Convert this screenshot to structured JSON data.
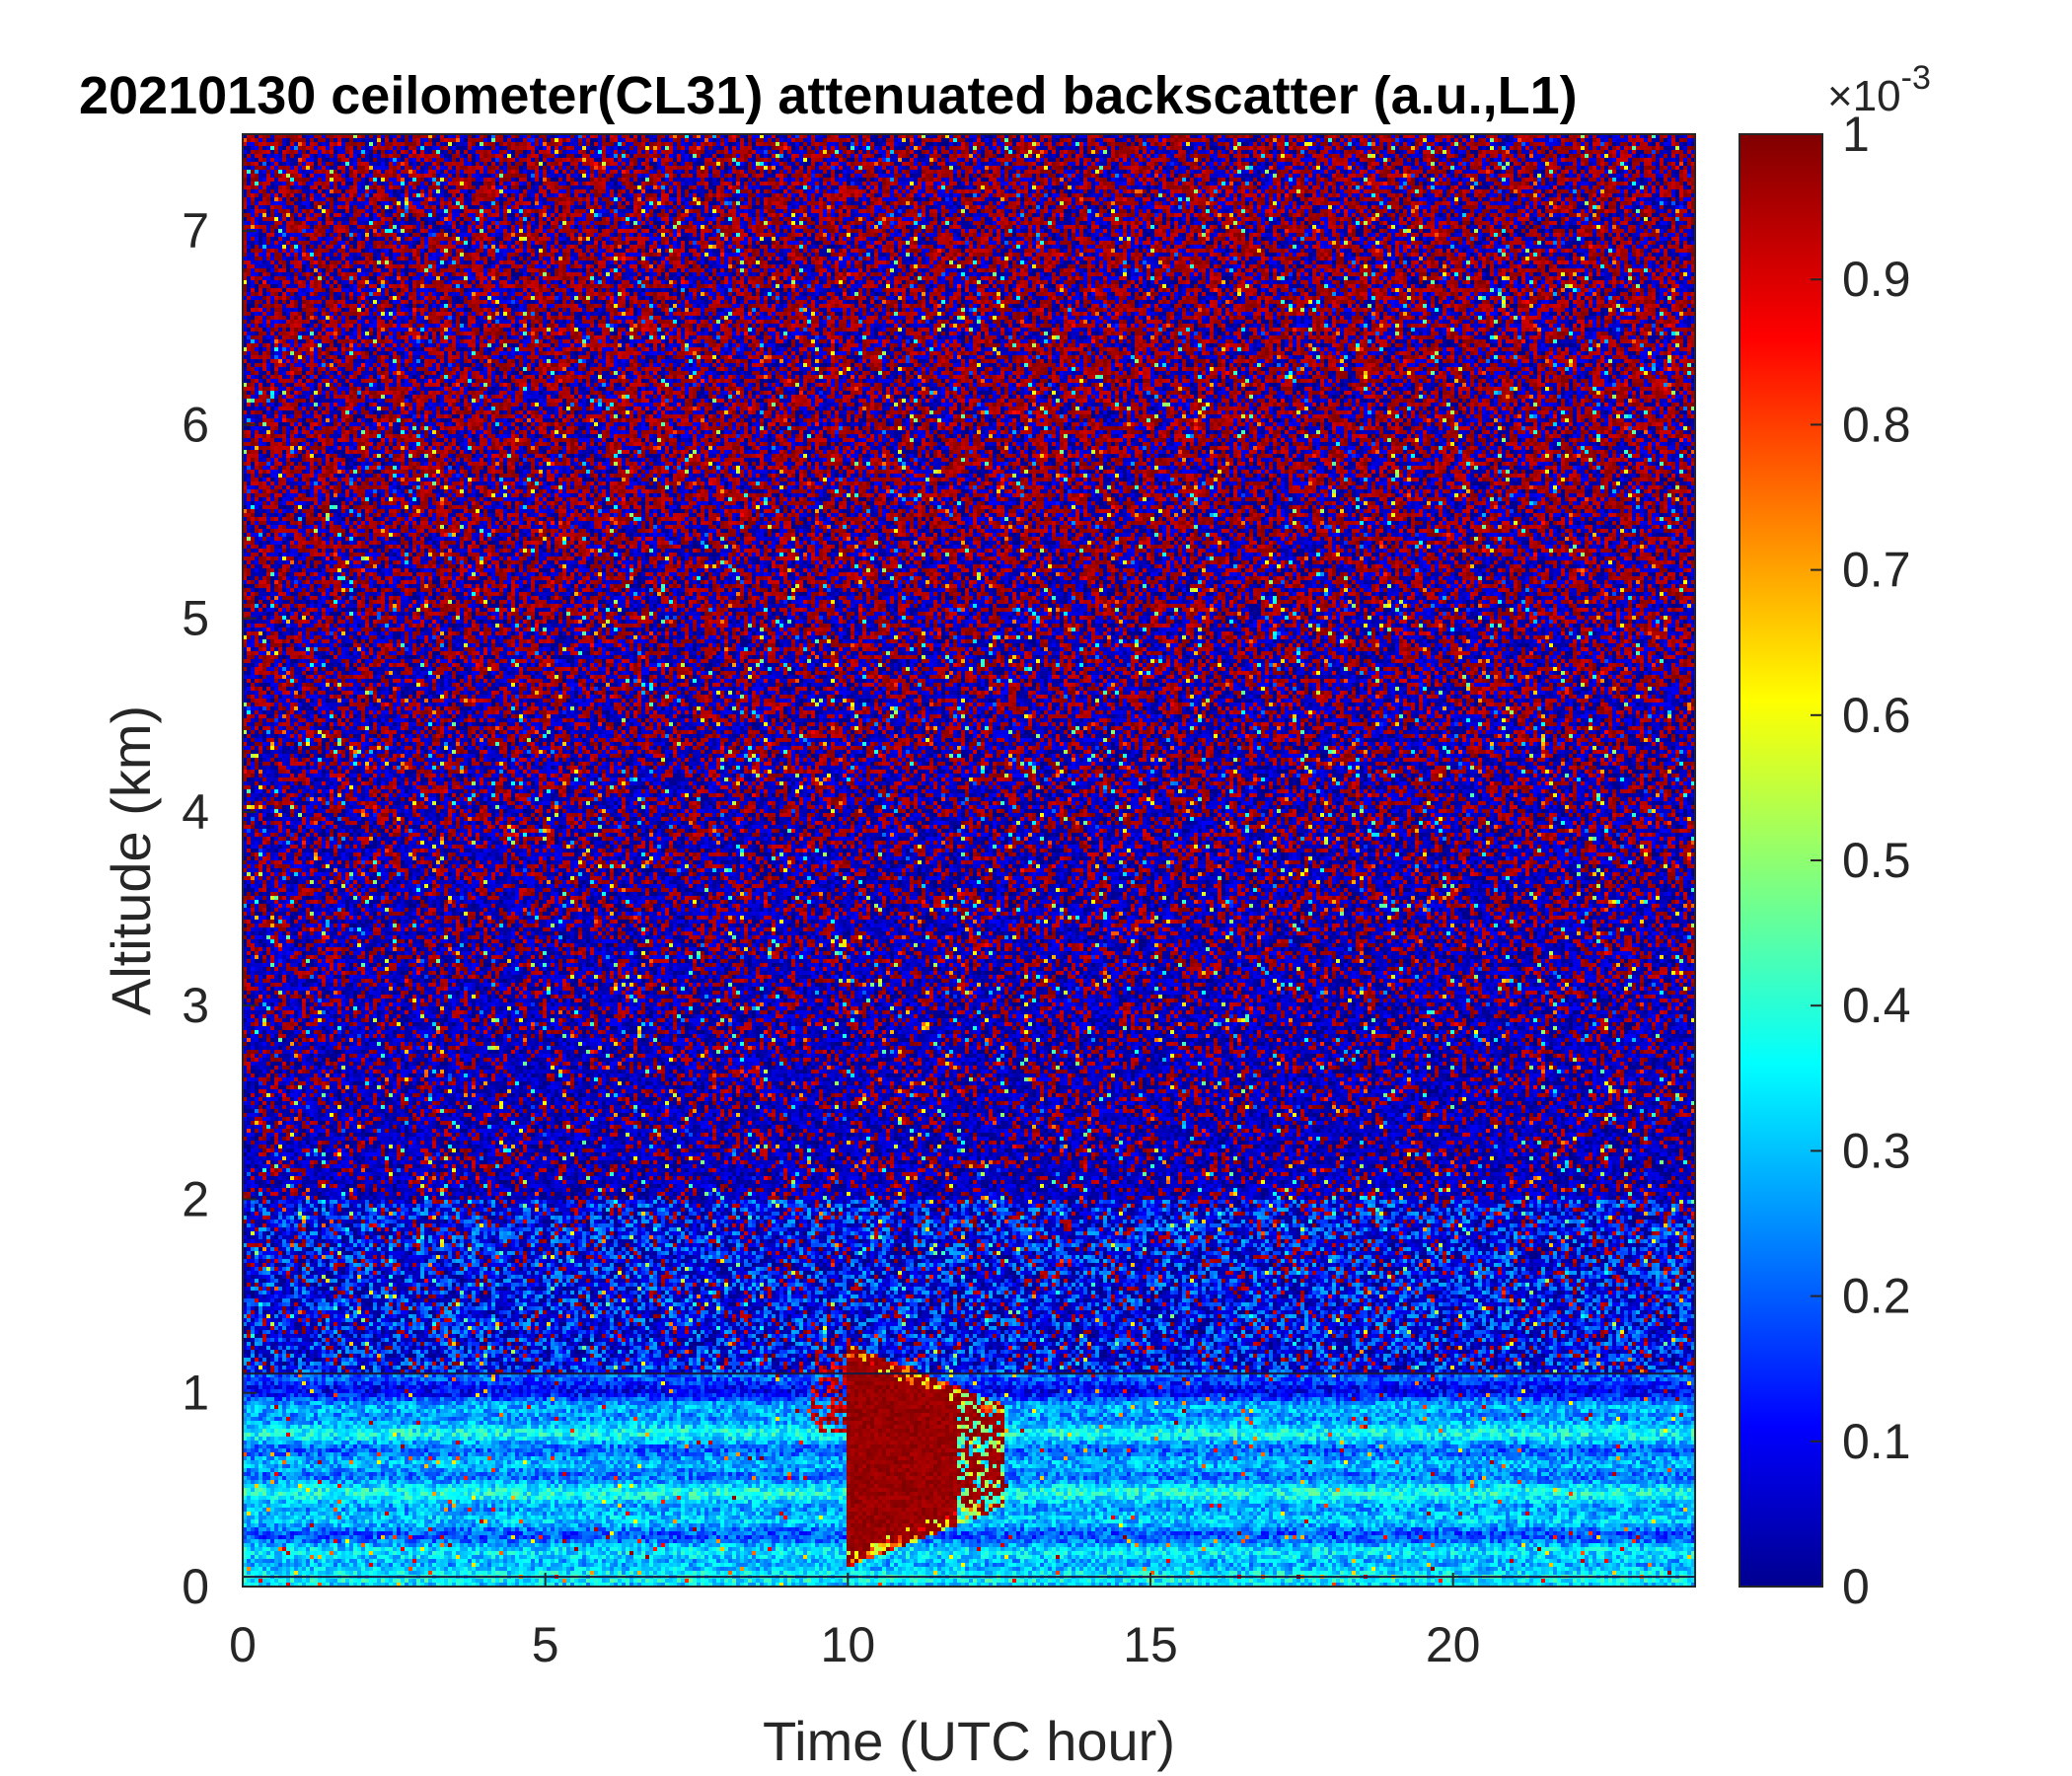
{
  "chart_data": {
    "type": "heatmap",
    "title": "20210130 ceilometer(CL31) attenuated backscatter (a.u.,L1)",
    "xlabel": "Time (UTC hour)",
    "ylabel": "Altitude (km)",
    "xlim": [
      0,
      24
    ],
    "ylim": [
      0,
      7.5
    ],
    "x_ticks": [
      0,
      5,
      10,
      15,
      20
    ],
    "y_ticks": [
      0,
      1,
      2,
      3,
      4,
      5,
      6,
      7
    ],
    "colorbar": {
      "colormap": "jet",
      "clim": [
        0,
        1
      ],
      "ticks": [
        0,
        0.1,
        0.2,
        0.3,
        0.4,
        0.5,
        0.6,
        0.7,
        0.8,
        0.9,
        1
      ],
      "multiplier_base": "×10",
      "multiplier_exponent": "-3"
    },
    "features": [
      {
        "name": "boundary layer",
        "x_range": [
          0,
          24
        ],
        "y_range": [
          0,
          1.1
        ],
        "level": 0.3
      },
      {
        "name": "cloud",
        "x_range": [
          10,
          12.6
        ],
        "y_range": [
          0.1,
          1.25
        ],
        "level": 1.0
      },
      {
        "name": "background noise",
        "x_range": [
          0,
          24
        ],
        "y_range": [
          1.1,
          7.5
        ],
        "level": "random 0-1"
      }
    ],
    "reference_lines_altitude_km": [
      0.05,
      1.1
    ],
    "grid": false
  }
}
